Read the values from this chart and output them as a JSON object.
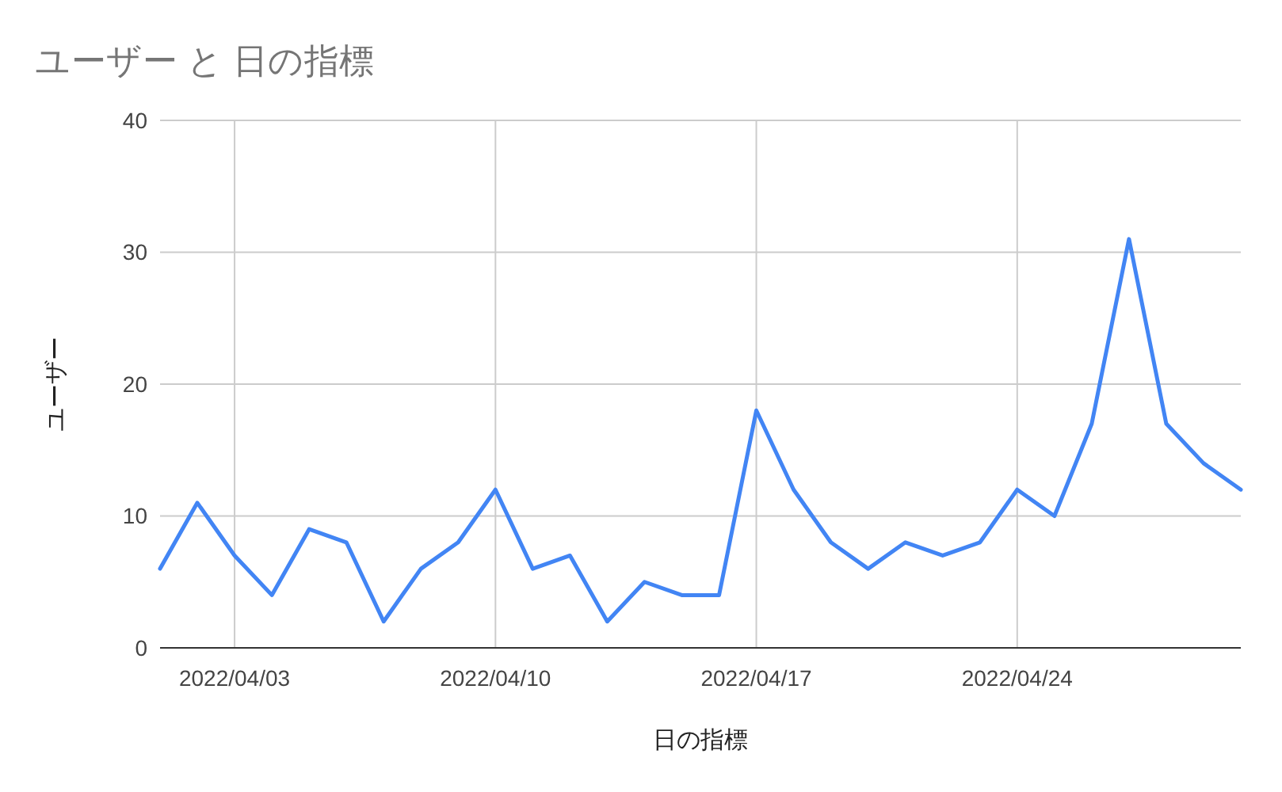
{
  "chart_data": {
    "type": "line",
    "title": "ユーザー と 日の指標",
    "xlabel": "日の指標",
    "ylabel": "ユーザー",
    "x": [
      "2022-04-01",
      "2022-04-02",
      "2022-04-03",
      "2022-04-04",
      "2022-04-05",
      "2022-04-06",
      "2022-04-07",
      "2022-04-08",
      "2022-04-09",
      "2022-04-10",
      "2022-04-11",
      "2022-04-12",
      "2022-04-13",
      "2022-04-14",
      "2022-04-15",
      "2022-04-16",
      "2022-04-17",
      "2022-04-18",
      "2022-04-19",
      "2022-04-20",
      "2022-04-21",
      "2022-04-22",
      "2022-04-23",
      "2022-04-24",
      "2022-04-25",
      "2022-04-26",
      "2022-04-27",
      "2022-04-28",
      "2022-04-29",
      "2022-04-30"
    ],
    "series": [
      {
        "color": "#4285f4",
        "values": [
          6,
          11,
          7,
          4,
          9,
          8,
          2,
          6,
          8,
          12,
          6,
          7,
          2,
          5,
          4,
          4,
          18,
          12,
          8,
          6,
          8,
          7,
          8,
          12,
          10,
          17,
          31,
          17,
          14,
          12
        ]
      }
    ],
    "xlim": [
      "2022-04-01",
      "2022-04-30"
    ],
    "xticks": [
      {
        "value": "2022-04-03",
        "label": "2022/04/03"
      },
      {
        "value": "2022-04-10",
        "label": "2022/04/10"
      },
      {
        "value": "2022-04-17",
        "label": "2022/04/17"
      },
      {
        "value": "2022-04-24",
        "label": "2022/04/24"
      }
    ],
    "ylim": [
      0,
      40
    ],
    "yticks": [
      0,
      10,
      20,
      30,
      40
    ],
    "grid": true,
    "marker": "none",
    "line_style": "solid"
  }
}
